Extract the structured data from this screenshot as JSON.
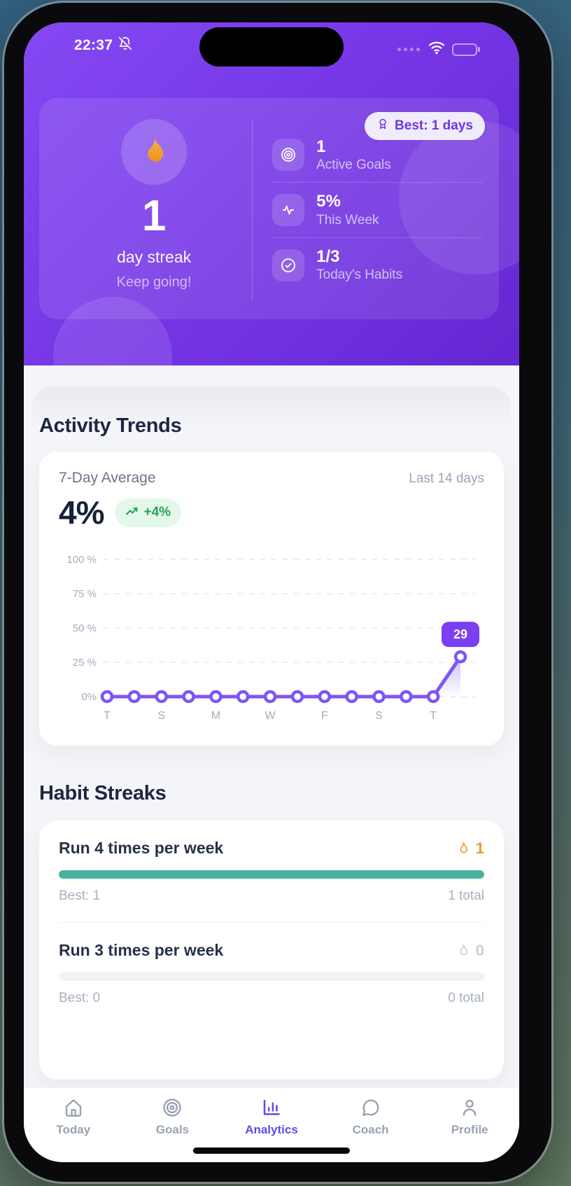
{
  "status_bar": {
    "time": "22:37"
  },
  "header": {
    "best_badge": "Best: 1 days",
    "streak_value": "1",
    "streak_label": "day streak",
    "streak_sub": "Keep going!",
    "stats": [
      {
        "icon": "target-icon",
        "value": "1",
        "label": "Active Goals"
      },
      {
        "icon": "activity-icon",
        "value": "5%",
        "label": "This Week"
      },
      {
        "icon": "check-circle-icon",
        "value": "1/3",
        "label": "Today's Habits"
      }
    ]
  },
  "activity_trends": {
    "section_title": "Activity Trends",
    "metric_label": "7-Day Average",
    "metric_value": "4%",
    "delta_badge": "+4%",
    "range_label": "Last 14 days"
  },
  "chart_data": {
    "type": "line",
    "title": "Activity Trends - Last 14 days",
    "values": [
      0,
      0,
      0,
      0,
      0,
      0,
      0,
      0,
      0,
      0,
      0,
      0,
      0,
      29
    ],
    "x_tick_labels": [
      "T",
      "S",
      "M",
      "W",
      "F",
      "S",
      "T"
    ],
    "x_tick_every": 2,
    "y_ticks": [
      {
        "label": "100 %",
        "value": 100
      },
      {
        "label": "75 %",
        "value": 75
      },
      {
        "label": "50 %",
        "value": 50
      },
      {
        "label": "25 %",
        "value": 25
      },
      {
        "label": "0%",
        "value": 0
      }
    ],
    "ylim": [
      0,
      100
    ],
    "grid": "dashed",
    "line_color": "#7c55f7",
    "tooltip": {
      "index": 13,
      "label": "29"
    }
  },
  "habit_streaks": {
    "section_title": "Habit Streaks",
    "habits": [
      {
        "name": "Run 4 times per week",
        "streak": "1",
        "best": "Best: 1",
        "total": "1 total",
        "progress": 1,
        "active": true
      },
      {
        "name": "Run 3 times per week",
        "streak": "0",
        "best": "Best: 0",
        "total": "0 total",
        "progress": 0,
        "active": false
      }
    ]
  },
  "bottom_nav": {
    "items": [
      {
        "label": "Today",
        "icon": "home-icon",
        "active": false
      },
      {
        "label": "Goals",
        "icon": "target-icon",
        "active": false
      },
      {
        "label": "Analytics",
        "icon": "bar-chart-icon",
        "active": true
      },
      {
        "label": "Coach",
        "icon": "chat-icon",
        "active": false
      },
      {
        "label": "Profile",
        "icon": "user-icon",
        "active": false
      }
    ]
  },
  "colors": {
    "header_purple": "#7636e6",
    "accent_purple": "#7c55f7",
    "nav_active": "#5a4bf0",
    "success_green": "#27a355",
    "progress_teal": "#47b39d",
    "flame_orange": "#f2a93d",
    "text_dark": "#1d2742",
    "text_muted": "#9aa5b6"
  }
}
